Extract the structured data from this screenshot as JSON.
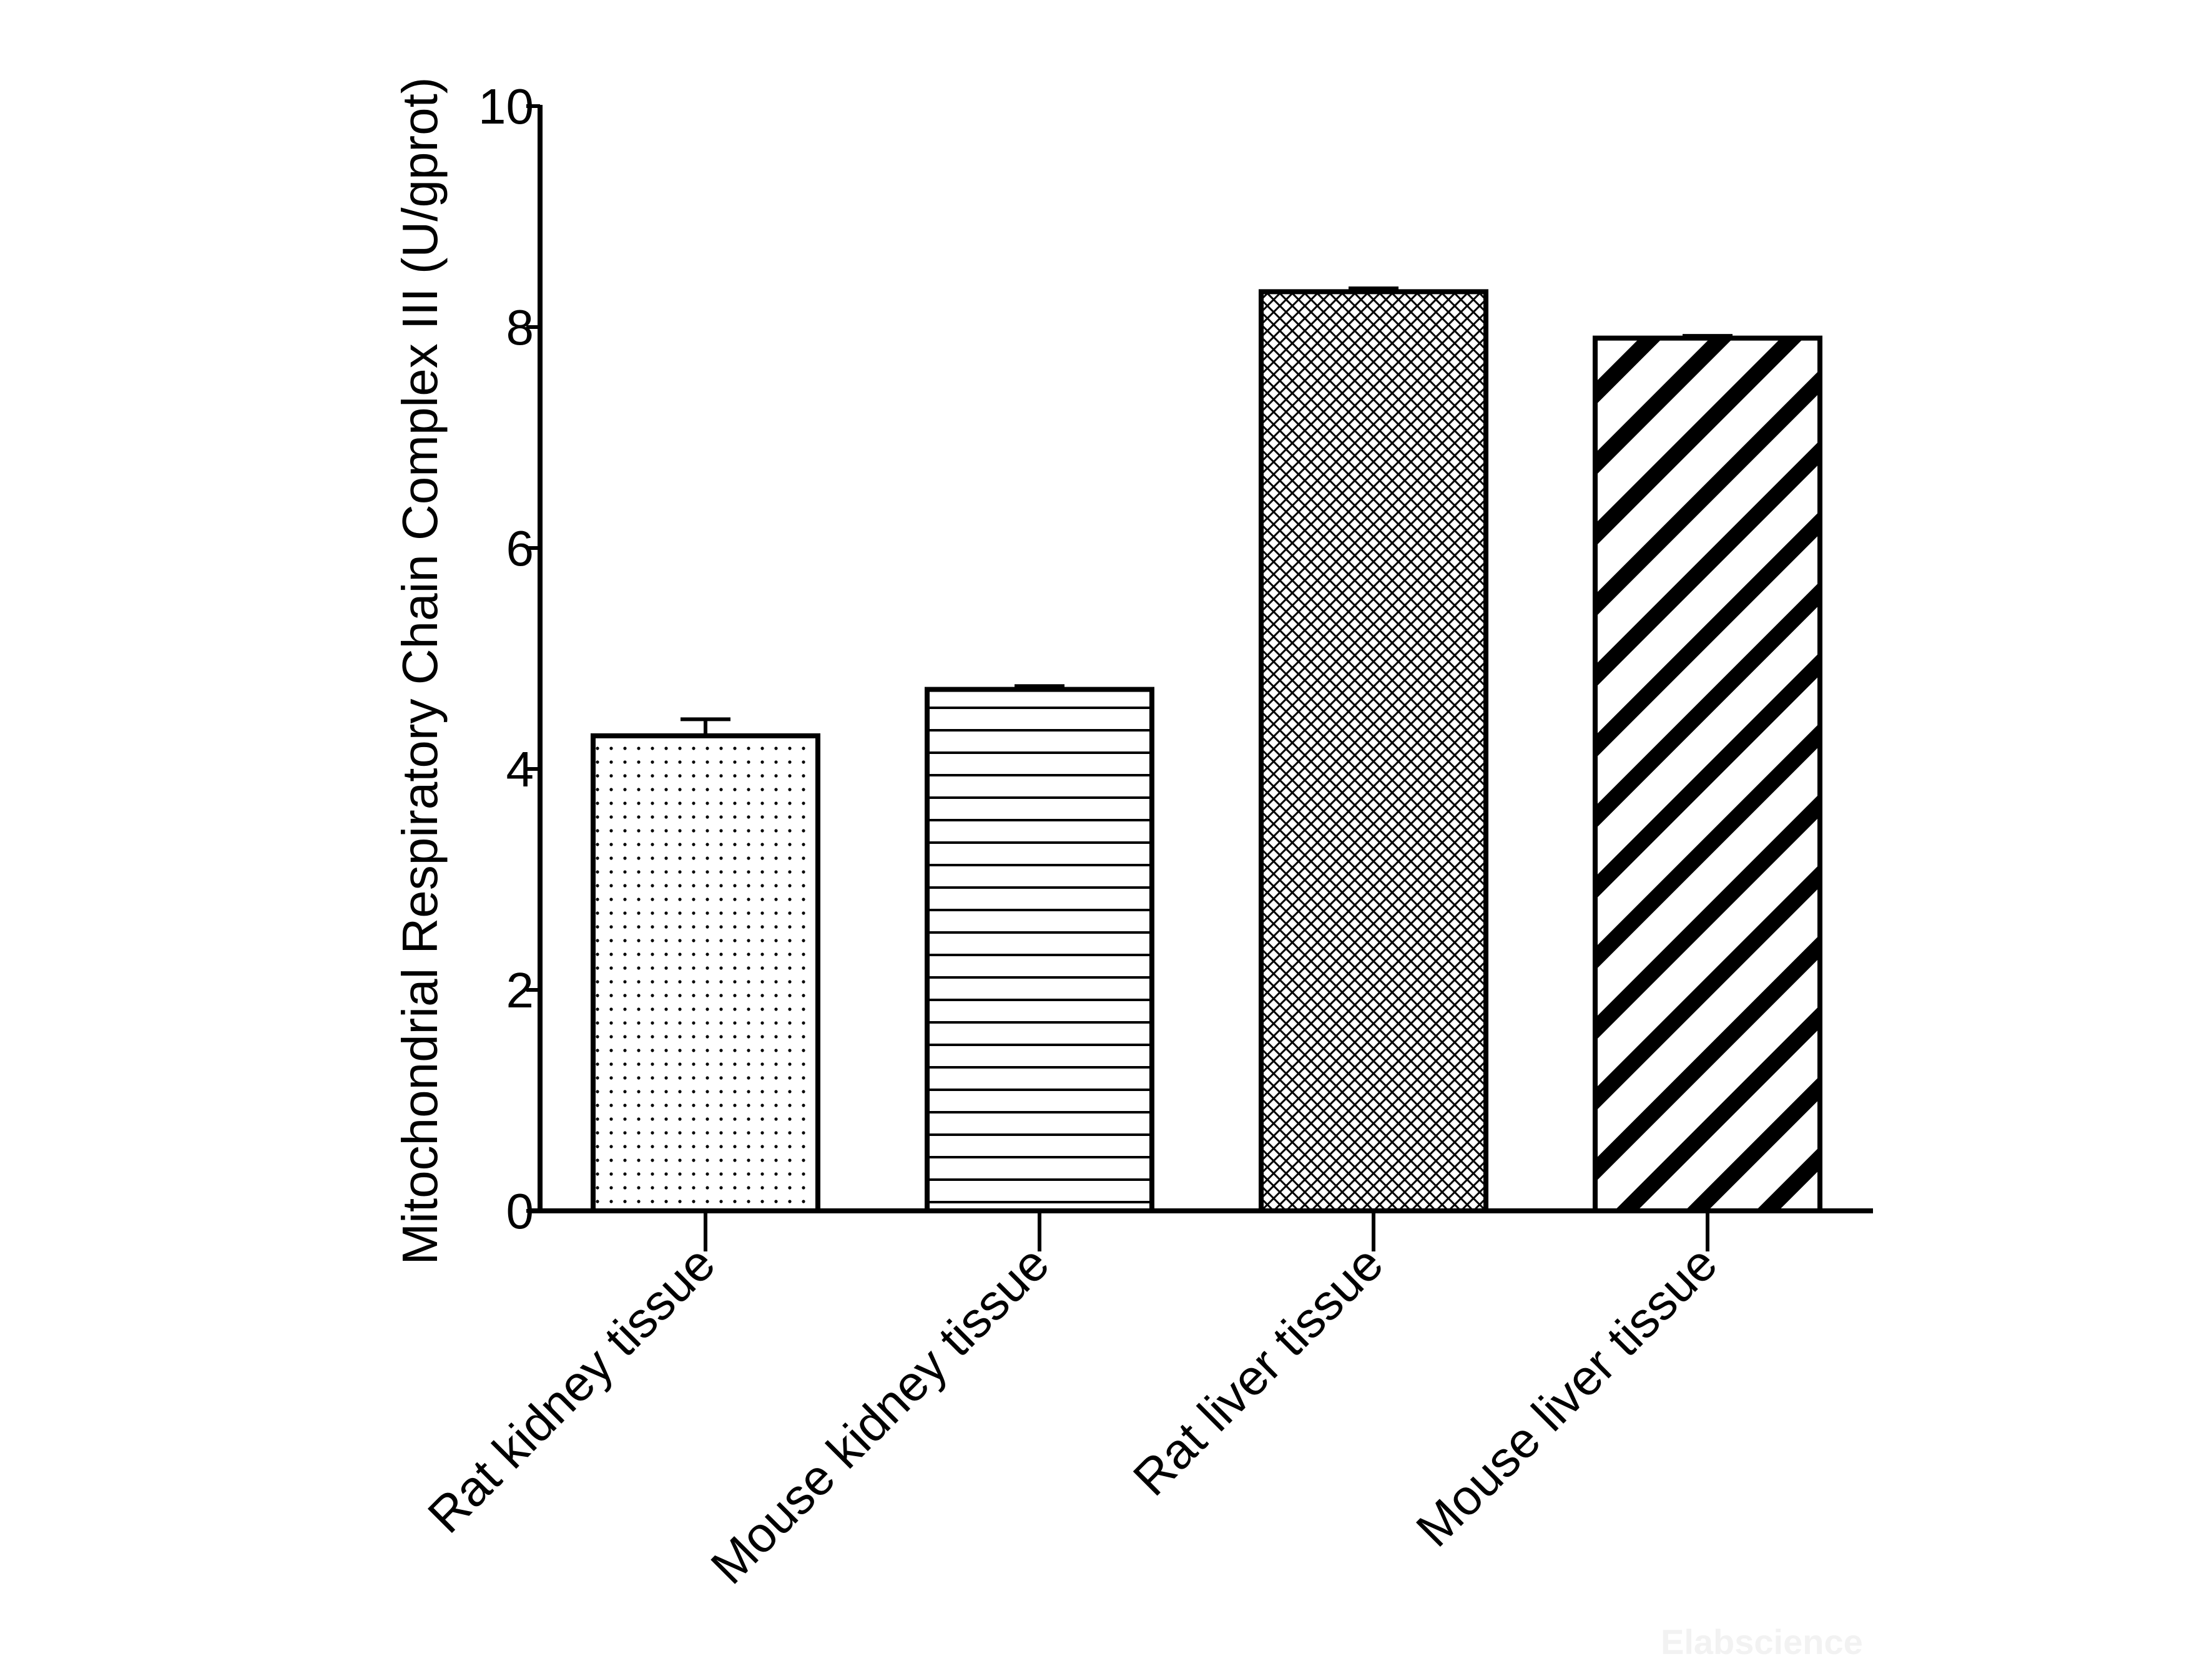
{
  "chart_data": {
    "type": "bar",
    "title": "",
    "xlabel": "",
    "ylabel": "Mitochondrial Respiratory Chain Complex III (U/gprot)",
    "ylim": [
      0,
      10
    ],
    "yticks": [
      0,
      2,
      4,
      6,
      8,
      10
    ],
    "categories": [
      "Rat kidney tissue",
      "Mouse kidney tissue",
      "Rat  liver tissue",
      "Mouse liver tissue"
    ],
    "values": [
      4.3,
      4.72,
      8.32,
      7.9
    ],
    "error": [
      0.15,
      0.03,
      0.03,
      0.02
    ],
    "patterns": [
      "dots",
      "horizontal",
      "crosshatch",
      "diagonal"
    ],
    "grid": false,
    "colors": {
      "stroke": "#000000",
      "fill": "#ffffff"
    }
  },
  "watermark": "Elabscience"
}
